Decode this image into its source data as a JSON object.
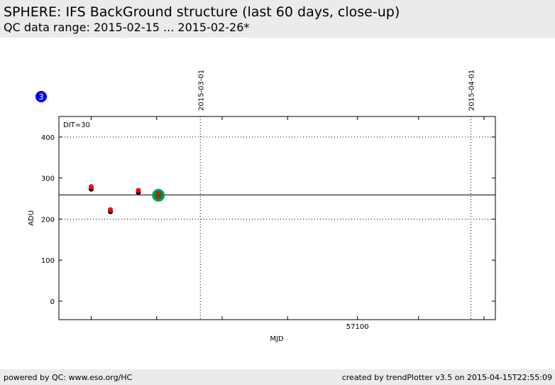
{
  "header": {
    "title": "SPHERE: IFS BackGround structure (last 60 days, close-up)",
    "subtitle": "QC data range: 2015-02-15 ... 2015-02-26*"
  },
  "footer": {
    "left": "powered by QC: www.eso.org/HC",
    "right": "created by trendPlotter v3.5 on 2015-04-15T22:55:09"
  },
  "badge": {
    "text": "3",
    "color": "#0000ee"
  },
  "chart_data": {
    "type": "scatter",
    "xlabel": "MJD",
    "ylabel": "ADU",
    "annotation": "DIT=30",
    "xlim": [
      57065.8,
      57115.8
    ],
    "ylim": [
      -45,
      450
    ],
    "x_ticks": [
      {
        "value": 57069.5,
        "label": ""
      },
      {
        "value": 57077.0,
        "label": ""
      },
      {
        "value": 57084.5,
        "label": ""
      },
      {
        "value": 57092.0,
        "label": ""
      },
      {
        "value": 57100,
        "label": "57100"
      },
      {
        "value": 57107.0,
        "label": ""
      },
      {
        "value": 57114.5,
        "label": ""
      }
    ],
    "y_ticks": [
      0,
      100,
      200,
      300,
      400
    ],
    "y_grid": [
      200,
      400
    ],
    "date_markers": [
      {
        "value": 57082,
        "label": "2015-03-01"
      },
      {
        "value": 57113,
        "label": "2015-04-01"
      }
    ],
    "reference_line": 259,
    "series": [
      {
        "color": "#000000",
        "points": [
          {
            "x": 57069.5,
            "y": 273
          },
          {
            "x": 57071.7,
            "y": 218
          },
          {
            "x": 57074.9,
            "y": 265
          }
        ]
      },
      {
        "color": "#ff0000",
        "points": [
          {
            "x": 57069.5,
            "y": 279
          },
          {
            "x": 57071.7,
            "y": 223
          },
          {
            "x": 57074.9,
            "y": 270
          }
        ]
      }
    ],
    "latest_point": {
      "x": 57077.2,
      "y": 258,
      "ring_color": "#00a651",
      "fill_color": "#007a3d",
      "marker_color": "#ff0000"
    }
  }
}
